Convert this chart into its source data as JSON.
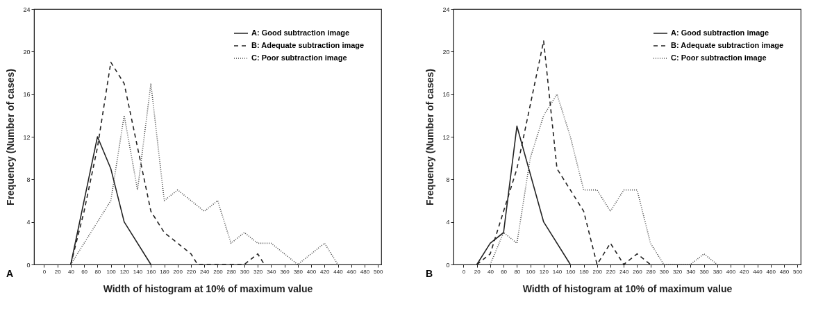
{
  "chart_data": [
    {
      "type": "line",
      "xlabel": "Width of histogram at 10% of maximum value",
      "ylabel": "Frequency (Number of cases)",
      "annotations": [
        "A"
      ],
      "xlim": [
        -15,
        505
      ],
      "xticks": [
        0,
        20,
        40,
        60,
        80,
        100,
        120,
        140,
        160,
        180,
        200,
        220,
        240,
        260,
        280,
        300,
        320,
        340,
        360,
        380,
        400,
        420,
        440,
        460,
        480,
        500
      ],
      "ylim": [
        0,
        24
      ],
      "yticks": [
        0,
        4,
        8,
        12,
        16,
        20,
        24
      ],
      "grid": false,
      "legend": "top right",
      "series": [
        {
          "name": "A: Good subtraction image",
          "color": "#222222",
          "line_style": "solid",
          "x": [
            40,
            80,
            100,
            120,
            160
          ],
          "values": [
            0,
            12,
            9,
            4,
            0
          ]
        },
        {
          "name": "B: Adequate subtraction image",
          "color": "#222222",
          "line_style": "dashed",
          "x": [
            40,
            60,
            80,
            100,
            120,
            140,
            160,
            180,
            200,
            220,
            230,
            300,
            320,
            330
          ],
          "values": [
            0,
            5,
            11,
            19,
            17,
            11,
            5,
            3,
            2,
            1,
            0,
            0,
            1,
            0
          ]
        },
        {
          "name": "C: Poor subtraction image",
          "color": "#444444",
          "line_style": "dotted",
          "x": [
            40,
            80,
            100,
            120,
            140,
            160,
            180,
            200,
            240,
            260,
            280,
            300,
            320,
            340,
            380,
            420,
            440
          ],
          "values": [
            0,
            4,
            6,
            14,
            7,
            17,
            6,
            7,
            5,
            6,
            2,
            3,
            2,
            2,
            0,
            2,
            0
          ]
        }
      ]
    },
    {
      "type": "line",
      "xlabel": "Width of histogram at 10% of maximum value",
      "ylabel": "Frequency (Number of cases)",
      "annotations": [
        "B"
      ],
      "xlim": [
        -15,
        505
      ],
      "xticks": [
        0,
        20,
        40,
        60,
        80,
        100,
        120,
        140,
        160,
        180,
        200,
        220,
        240,
        260,
        280,
        300,
        320,
        340,
        360,
        380,
        400,
        420,
        440,
        460,
        480,
        500
      ],
      "ylim": [
        0,
        24
      ],
      "yticks": [
        0,
        4,
        8,
        12,
        16,
        20,
        24
      ],
      "grid": false,
      "legend": "top right",
      "series": [
        {
          "name": "A: Good subtraction image",
          "color": "#222222",
          "line_style": "solid",
          "x": [
            20,
            40,
            60,
            80,
            120,
            160
          ],
          "values": [
            0,
            2,
            3,
            13,
            4,
            0
          ]
        },
        {
          "name": "B: Adequate subtraction image",
          "color": "#222222",
          "line_style": "dashed",
          "x": [
            20,
            40,
            60,
            80,
            100,
            120,
            140,
            160,
            180,
            200,
            220,
            240,
            260,
            280
          ],
          "values": [
            0,
            1,
            5,
            9,
            15,
            21,
            9,
            7,
            5,
            0,
            2,
            0,
            1,
            0
          ]
        },
        {
          "name": "C: Poor subtraction image",
          "color": "#444444",
          "line_style": "dotted",
          "x": [
            40,
            60,
            80,
            100,
            120,
            140,
            160,
            180,
            200,
            220,
            240,
            260,
            280,
            300,
            340,
            360,
            380
          ],
          "values": [
            0,
            3,
            2,
            10,
            14,
            16,
            12,
            7,
            7,
            5,
            7,
            7,
            2,
            0,
            0,
            1,
            0
          ]
        }
      ]
    }
  ]
}
